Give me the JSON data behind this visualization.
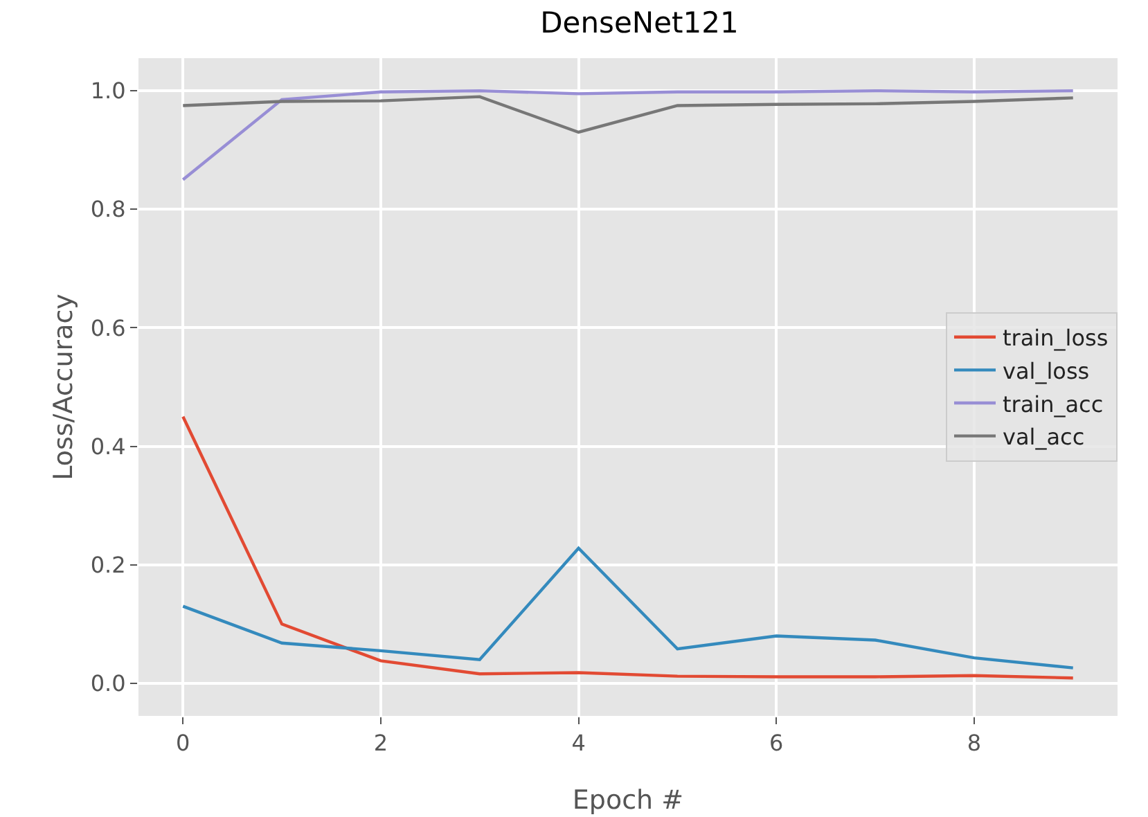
{
  "chart_data": {
    "type": "line",
    "title": "DenseNet121",
    "xlabel": "Epoch #",
    "ylabel": "Loss/Accuracy",
    "x": [
      0,
      1,
      2,
      3,
      4,
      5,
      6,
      7,
      8,
      9
    ],
    "series": [
      {
        "name": "train_loss",
        "color": "#e24a33",
        "values": [
          0.45,
          0.1,
          0.038,
          0.016,
          0.018,
          0.012,
          0.011,
          0.011,
          0.013,
          0.009
        ]
      },
      {
        "name": "val_loss",
        "color": "#348abd",
        "values": [
          0.13,
          0.068,
          0.055,
          0.04,
          0.228,
          0.058,
          0.08,
          0.073,
          0.043,
          0.026
        ]
      },
      {
        "name": "train_acc",
        "color": "#988ed5",
        "values": [
          0.85,
          0.985,
          0.998,
          1.0,
          0.995,
          0.998,
          0.998,
          1.0,
          0.998,
          1.0
        ]
      },
      {
        "name": "val_acc",
        "color": "#777777",
        "values": [
          0.975,
          0.982,
          0.983,
          0.99,
          0.93,
          0.975,
          0.977,
          0.978,
          0.982,
          0.988
        ]
      }
    ],
    "xlim": [
      -0.45,
      9.45
    ],
    "ylim": [
      -0.055,
      1.055
    ],
    "xticks": [
      0,
      2,
      4,
      6,
      8
    ],
    "yticks": [
      {
        "value": 0,
        "label": "0.0"
      },
      0.2,
      0.4,
      0.6,
      0.8,
      {
        "value": 1,
        "label": "1.0"
      }
    ],
    "grid": true,
    "legend": "right",
    "marker": "none",
    "line_style": "solid"
  }
}
